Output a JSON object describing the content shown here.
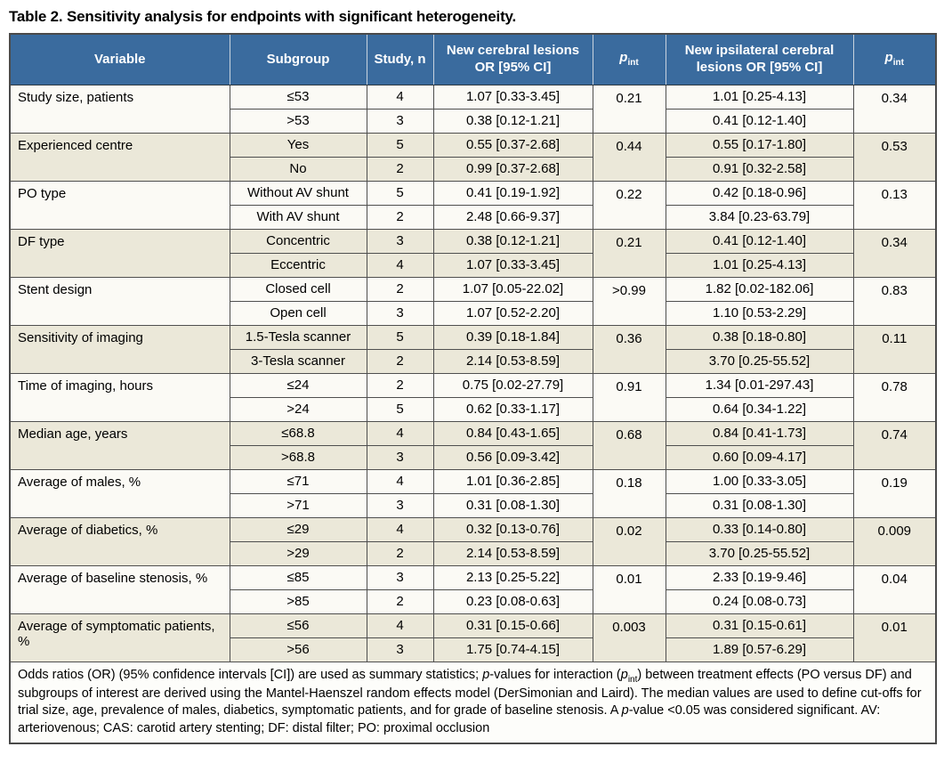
{
  "title": "Table 2. Sensitivity analysis for endpoints with significant heterogeneity.",
  "colors": {
    "header_bg": "#3a6b9e",
    "header_text": "#ffffff",
    "row_white": "#fbfaf5",
    "row_beige": "#ebe8d9",
    "border": "#4f4f4f"
  },
  "table": {
    "columns": [
      {
        "label": "Variable"
      },
      {
        "label": "Subgroup"
      },
      {
        "label": "Study, n"
      },
      {
        "label": "New cerebral lesions OR [95% CI]"
      },
      {
        "label": "p",
        "sub": "int"
      },
      {
        "label": "New ipsilateral cerebral lesions OR [95% CI]"
      },
      {
        "label": "p",
        "sub": "int"
      }
    ],
    "groups": [
      {
        "variable": "Study size, patients",
        "p_int_cerebral": "0.21",
        "p_int_ipsilateral": "0.34",
        "rows": [
          {
            "subgroup": "≤53",
            "study_n": "4",
            "or_cerebral": "1.07 [0.33-3.45]",
            "or_ipsilateral": "1.01 [0.25-4.13]"
          },
          {
            "subgroup": ">53",
            "study_n": "3",
            "or_cerebral": "0.38 [0.12-1.21]",
            "or_ipsilateral": "0.41 [0.12-1.40]"
          }
        ]
      },
      {
        "variable": "Experienced centre",
        "p_int_cerebral": "0.44",
        "p_int_ipsilateral": "0.53",
        "rows": [
          {
            "subgroup": "Yes",
            "study_n": "5",
            "or_cerebral": "0.55 [0.37-2.68]",
            "or_ipsilateral": "0.55 [0.17-1.80]"
          },
          {
            "subgroup": "No",
            "study_n": "2",
            "or_cerebral": "0.99 [0.37-2.68]",
            "or_ipsilateral": "0.91 [0.32-2.58]"
          }
        ]
      },
      {
        "variable": "PO type",
        "p_int_cerebral": "0.22",
        "p_int_ipsilateral": "0.13",
        "rows": [
          {
            "subgroup": "Without AV shunt",
            "study_n": "5",
            "or_cerebral": "0.41 [0.19-1.92]",
            "or_ipsilateral": "0.42 [0.18-0.96]"
          },
          {
            "subgroup": "With AV shunt",
            "study_n": "2",
            "or_cerebral": "2.48 [0.66-9.37]",
            "or_ipsilateral": "3.84 [0.23-63.79]"
          }
        ]
      },
      {
        "variable": "DF type",
        "p_int_cerebral": "0.21",
        "p_int_ipsilateral": "0.34",
        "rows": [
          {
            "subgroup": "Concentric",
            "study_n": "3",
            "or_cerebral": "0.38 [0.12-1.21]",
            "or_ipsilateral": "0.41 [0.12-1.40]"
          },
          {
            "subgroup": "Eccentric",
            "study_n": "4",
            "or_cerebral": "1.07 [0.33-3.45]",
            "or_ipsilateral": "1.01 [0.25-4.13]"
          }
        ]
      },
      {
        "variable": "Stent design",
        "p_int_cerebral": ">0.99",
        "p_int_ipsilateral": "0.83",
        "rows": [
          {
            "subgroup": "Closed cell",
            "study_n": "2",
            "or_cerebral": "1.07 [0.05-22.02]",
            "or_ipsilateral": "1.82 [0.02-182.06]"
          },
          {
            "subgroup": "Open cell",
            "study_n": "3",
            "or_cerebral": "1.07 [0.52-2.20]",
            "or_ipsilateral": "1.10 [0.53-2.29]"
          }
        ]
      },
      {
        "variable": "Sensitivity of imaging",
        "p_int_cerebral": "0.36",
        "p_int_ipsilateral": "0.11",
        "rows": [
          {
            "subgroup": "1.5-Tesla scanner",
            "study_n": "5",
            "or_cerebral": "0.39 [0.18-1.84]",
            "or_ipsilateral": "0.38 [0.18-0.80]"
          },
          {
            "subgroup": "3-Tesla scanner",
            "study_n": "2",
            "or_cerebral": "2.14 [0.53-8.59]",
            "or_ipsilateral": "3.70 [0.25-55.52]"
          }
        ]
      },
      {
        "variable": "Time of imaging, hours",
        "p_int_cerebral": "0.91",
        "p_int_ipsilateral": "0.78",
        "rows": [
          {
            "subgroup": "≤24",
            "study_n": "2",
            "or_cerebral": "0.75 [0.02-27.79]",
            "or_ipsilateral": "1.34 [0.01-297.43]"
          },
          {
            "subgroup": ">24",
            "study_n": "5",
            "or_cerebral": "0.62 [0.33-1.17]",
            "or_ipsilateral": "0.64 [0.34-1.22]"
          }
        ]
      },
      {
        "variable": "Median age, years",
        "p_int_cerebral": "0.68",
        "p_int_ipsilateral": "0.74",
        "rows": [
          {
            "subgroup": "≤68.8",
            "study_n": "4",
            "or_cerebral": "0.84 [0.43-1.65]",
            "or_ipsilateral": "0.84 [0.41-1.73]"
          },
          {
            "subgroup": ">68.8",
            "study_n": "3",
            "or_cerebral": "0.56 [0.09-3.42]",
            "or_ipsilateral": "0.60 [0.09-4.17]"
          }
        ]
      },
      {
        "variable": "Average of males, %",
        "p_int_cerebral": "0.18",
        "p_int_ipsilateral": "0.19",
        "rows": [
          {
            "subgroup": "≤71",
            "study_n": "4",
            "or_cerebral": "1.01 [0.36-2.85]",
            "or_ipsilateral": "1.00 [0.33-3.05]"
          },
          {
            "subgroup": ">71",
            "study_n": "3",
            "or_cerebral": "0.31 [0.08-1.30]",
            "or_ipsilateral": "0.31 [0.08-1.30]"
          }
        ]
      },
      {
        "variable": "Average of diabetics, %",
        "p_int_cerebral": "0.02",
        "p_int_ipsilateral": "0.009",
        "rows": [
          {
            "subgroup": "≤29",
            "study_n": "4",
            "or_cerebral": "0.32 [0.13-0.76]",
            "or_ipsilateral": "0.33 [0.14-0.80]"
          },
          {
            "subgroup": ">29",
            "study_n": "2",
            "or_cerebral": "2.14 [0.53-8.59]",
            "or_ipsilateral": "3.70 [0.25-55.52]"
          }
        ]
      },
      {
        "variable": "Average of baseline stenosis, %",
        "p_int_cerebral": "0.01",
        "p_int_ipsilateral": "0.04",
        "rows": [
          {
            "subgroup": "≤85",
            "study_n": "3",
            "or_cerebral": "2.13 [0.25-5.22]",
            "or_ipsilateral": "2.33 [0.19-9.46]"
          },
          {
            "subgroup": ">85",
            "study_n": "2",
            "or_cerebral": "0.23 [0.08-0.63]",
            "or_ipsilateral": "0.24 [0.08-0.73]"
          }
        ]
      },
      {
        "variable": "Average of symptomatic patients, %",
        "p_int_cerebral": "0.003",
        "p_int_ipsilateral": "0.01",
        "rows": [
          {
            "subgroup": "≤56",
            "study_n": "4",
            "or_cerebral": "0.31 [0.15-0.66]",
            "or_ipsilateral": "0.31 [0.15-0.61]"
          },
          {
            "subgroup": ">56",
            "study_n": "3",
            "or_cerebral": "1.75 [0.74-4.15]",
            "or_ipsilateral": "1.89 [0.57-6.29]"
          }
        ]
      }
    ]
  },
  "footnote": {
    "segments": [
      {
        "text": "Odds ratios (OR) (95% confidence intervals [CI]) are used as summary statistics; ",
        "style": "normal"
      },
      {
        "text": "p",
        "style": "italic"
      },
      {
        "text": "-values for interaction (",
        "style": "normal"
      },
      {
        "text": "p",
        "style": "italic"
      },
      {
        "text": "int",
        "style": "sub"
      },
      {
        "text": ") between treatment effects (PO versus DF) and subgroups of interest are derived using the Mantel-Haenszel random effects model (DerSimonian and Laird). The median values are used to define cut-offs for trial size, age, prevalence of males, diabetics, symptomatic patients, and for grade of baseline stenosis. A ",
        "style": "normal"
      },
      {
        "text": "p",
        "style": "italic"
      },
      {
        "text": "-value <0.05 was considered significant. AV: arteriovenous; CAS: carotid artery stenting; DF: distal filter; PO: proximal occlusion",
        "style": "normal"
      }
    ]
  }
}
